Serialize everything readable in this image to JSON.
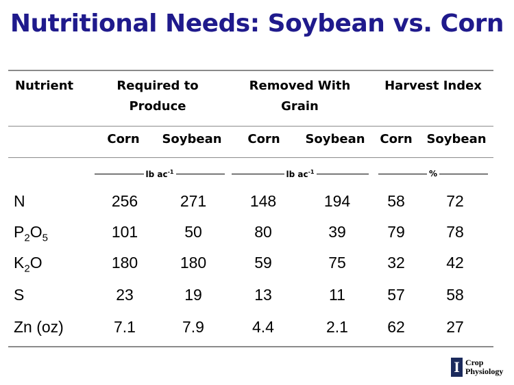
{
  "title": "Nutritional Needs: Soybean vs. Corn",
  "headers": {
    "nutrient": "Nutrient",
    "required": [
      "Required to",
      "Produce"
    ],
    "removed": [
      "Removed With",
      "Grain"
    ],
    "harvest": "Harvest Index"
  },
  "subheaders": [
    "Corn",
    "Soybean",
    "Corn",
    "Soybean",
    "Corn",
    "Soybean"
  ],
  "units": {
    "required": "lb ac",
    "removed": "lb ac",
    "exponent": "-1",
    "harvest": "%"
  },
  "rows": [
    {
      "label": "N",
      "label_sub_parts": [],
      "values": [
        "256",
        "271",
        "148",
        "194",
        "58",
        "72"
      ]
    },
    {
      "label": "P",
      "label_sub_parts": [
        "2",
        "O",
        "5"
      ],
      "values": [
        "101",
        "50",
        "80",
        "39",
        "79",
        "78"
      ]
    },
    {
      "label": "K",
      "label_sub_parts": [
        "2",
        "O"
      ],
      "values": [
        "180",
        "180",
        "59",
        "75",
        "32",
        "42"
      ]
    },
    {
      "label": "S",
      "label_sub_parts": [],
      "values": [
        "23",
        "19",
        "13",
        "11",
        "57",
        "58"
      ]
    },
    {
      "label": "Zn (oz)",
      "label_sub_parts": [],
      "values": [
        "7.1",
        "7.9",
        "4.4",
        "2.1",
        "62",
        "27"
      ]
    }
  ],
  "logo": {
    "letter": "I",
    "line1": "Crop",
    "line2": "Physiology"
  }
}
